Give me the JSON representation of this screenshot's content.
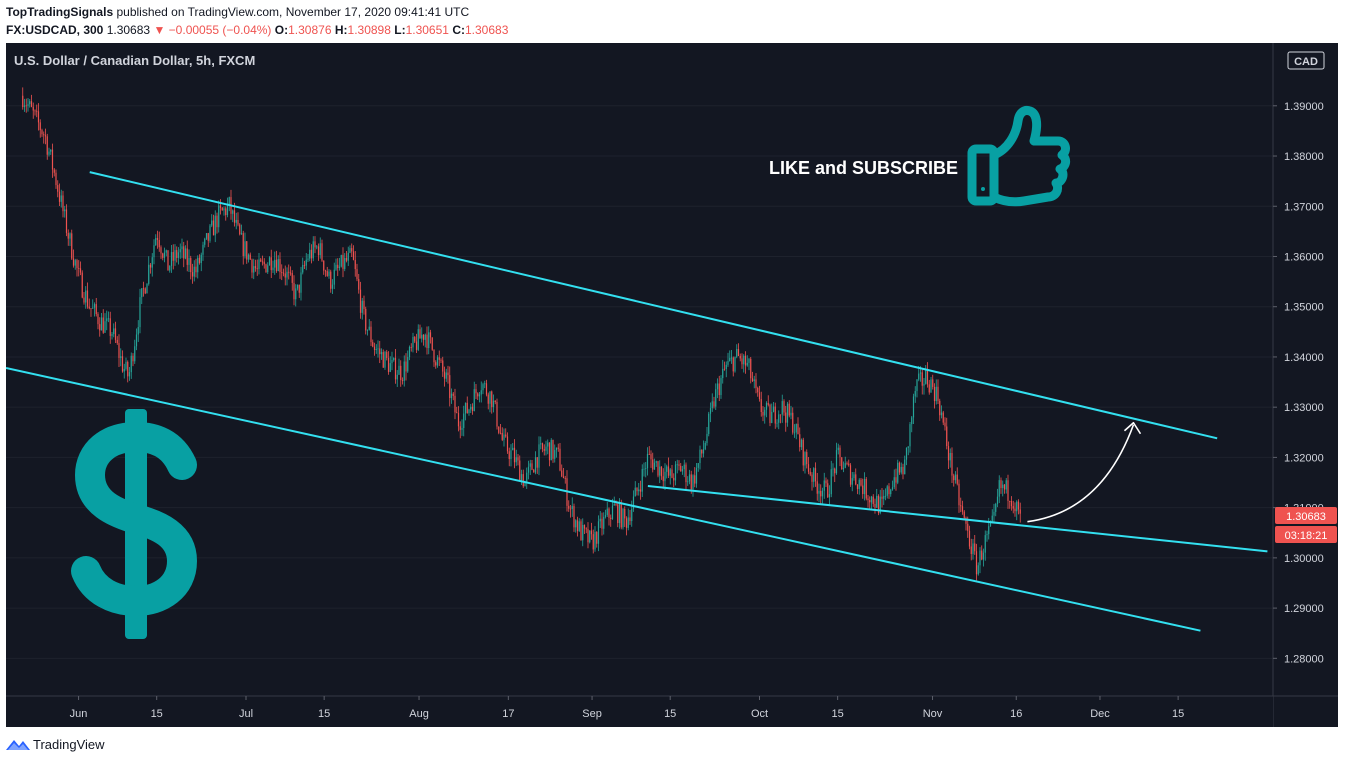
{
  "header": {
    "author": "TopTradingSignals",
    "published_text": "published on TradingView.com, November 17, 2020 09:41:41 UTC",
    "symbol": "FX:USDCAD, 300",
    "last_price": "1.30683",
    "change_arrow": "▼",
    "change_text": "−0.00055 (−0.04%)",
    "open_label": "O:",
    "open_value": "1.30876",
    "high_label": "H:",
    "high_value": "1.30898",
    "low_label": "L:",
    "low_value": "1.30651",
    "close_label": "C:",
    "close_value": "1.30683"
  },
  "footer": {
    "brand": "TradingView"
  },
  "chart_data": {
    "type": "candlestick",
    "title": "U.S. Dollar / Canadian Dollar, 5h, FXCM",
    "currency": "CAD",
    "ylim": [
      1.2725,
      1.4025
    ],
    "y_ticks": [
      "1.39000",
      "1.38000",
      "1.37000",
      "1.36000",
      "1.35000",
      "1.34000",
      "1.33000",
      "1.32000",
      "1.31000",
      "1.30000",
      "1.29000",
      "1.28000"
    ],
    "x_tick_labels": [
      "Jun",
      "15",
      "Jul",
      "15",
      "Aug",
      "17",
      "Sep",
      "15",
      "Oct",
      "15",
      "Nov",
      "16",
      "Dec",
      "15"
    ],
    "current_price_label": "1.30683",
    "countdown_label": "03:18:21",
    "price_path": [
      [
        "2020-05-22",
        1.392
      ],
      [
        "2020-05-26",
        1.384
      ],
      [
        "2020-05-28",
        1.375
      ],
      [
        "2020-05-30",
        1.365
      ],
      [
        "2020-06-01",
        1.356
      ],
      [
        "2020-06-03",
        1.35
      ],
      [
        "2020-06-05",
        1.347
      ],
      [
        "2020-06-07",
        1.345
      ],
      [
        "2020-06-09",
        1.338
      ],
      [
        "2020-06-10",
        1.336
      ],
      [
        "2020-06-12",
        1.35
      ],
      [
        "2020-06-15",
        1.365
      ],
      [
        "2020-06-17",
        1.358
      ],
      [
        "2020-06-19",
        1.361
      ],
      [
        "2020-06-22",
        1.357
      ],
      [
        "2020-06-24",
        1.363
      ],
      [
        "2020-06-26",
        1.368
      ],
      [
        "2020-06-28",
        1.37
      ],
      [
        "2020-06-30",
        1.363
      ],
      [
        "2020-07-03",
        1.357
      ],
      [
        "2020-07-06",
        1.36
      ],
      [
        "2020-07-08",
        1.357
      ],
      [
        "2020-07-10",
        1.352
      ],
      [
        "2020-07-12",
        1.36
      ],
      [
        "2020-07-14",
        1.362
      ],
      [
        "2020-07-16",
        1.355
      ],
      [
        "2020-07-18",
        1.358
      ],
      [
        "2020-07-20",
        1.36
      ],
      [
        "2020-07-22",
        1.348
      ],
      [
        "2020-07-24",
        1.342
      ],
      [
        "2020-07-27",
        1.338
      ],
      [
        "2020-07-29",
        1.337
      ],
      [
        "2020-07-31",
        1.342
      ],
      [
        "2020-08-02",
        1.345
      ],
      [
        "2020-08-04",
        1.34
      ],
      [
        "2020-08-06",
        1.335
      ],
      [
        "2020-08-08",
        1.327
      ],
      [
        "2020-08-10",
        1.33
      ],
      [
        "2020-08-12",
        1.335
      ],
      [
        "2020-08-14",
        1.332
      ],
      [
        "2020-08-16",
        1.323
      ],
      [
        "2020-08-18",
        1.32
      ],
      [
        "2020-08-20",
        1.315
      ],
      [
        "2020-08-22",
        1.32
      ],
      [
        "2020-08-24",
        1.322
      ],
      [
        "2020-08-26",
        1.32
      ],
      [
        "2020-08-28",
        1.31
      ],
      [
        "2020-08-30",
        1.305
      ],
      [
        "2020-09-01",
        1.303
      ],
      [
        "2020-09-03",
        1.307
      ],
      [
        "2020-09-05",
        1.31
      ],
      [
        "2020-09-07",
        1.307
      ],
      [
        "2020-09-09",
        1.313
      ],
      [
        "2020-09-11",
        1.32
      ],
      [
        "2020-09-13",
        1.318
      ],
      [
        "2020-09-15",
        1.316
      ],
      [
        "2020-09-17",
        1.318
      ],
      [
        "2020-09-19",
        1.315
      ],
      [
        "2020-09-21",
        1.322
      ],
      [
        "2020-09-23",
        1.332
      ],
      [
        "2020-09-25",
        1.338
      ],
      [
        "2020-09-27",
        1.34
      ],
      [
        "2020-09-29",
        1.338
      ],
      [
        "2020-10-01",
        1.33
      ],
      [
        "2020-10-03",
        1.328
      ],
      [
        "2020-10-05",
        1.33
      ],
      [
        "2020-10-07",
        1.327
      ],
      [
        "2020-10-09",
        1.32
      ],
      [
        "2020-10-11",
        1.315
      ],
      [
        "2020-10-13",
        1.313
      ],
      [
        "2020-10-15",
        1.32
      ],
      [
        "2020-10-17",
        1.317
      ],
      [
        "2020-10-19",
        1.315
      ],
      [
        "2020-10-21",
        1.312
      ],
      [
        "2020-10-23",
        1.31
      ],
      [
        "2020-10-25",
        1.316
      ],
      [
        "2020-10-27",
        1.318
      ],
      [
        "2020-10-29",
        1.334
      ],
      [
        "2020-10-31",
        1.336
      ],
      [
        "2020-11-02",
        1.332
      ],
      [
        "2020-11-04",
        1.32
      ],
      [
        "2020-11-06",
        1.31
      ],
      [
        "2020-11-08",
        1.302
      ],
      [
        "2020-11-09",
        1.298
      ],
      [
        "2020-11-10",
        1.302
      ],
      [
        "2020-11-12",
        1.307
      ],
      [
        "2020-11-13",
        1.314
      ],
      [
        "2020-11-15",
        1.313
      ],
      [
        "2020-11-17",
        1.3068
      ]
    ],
    "trendlines": [
      {
        "name": "upper-channel",
        "from": [
          "2020-06-03",
          1.3768
        ],
        "to": [
          "2020-12-22",
          1.3238
        ]
      },
      {
        "name": "lower-channel",
        "from": [
          "2020-05-19",
          1.3378
        ],
        "to": [
          "2020-12-19",
          1.2855
        ]
      },
      {
        "name": "support-line",
        "from": [
          "2020-09-11",
          1.3143
        ],
        "to": [
          "2020-12-31",
          1.3013
        ]
      }
    ],
    "projection_arrow": {
      "from": [
        "2020-11-18",
        1.3072
      ],
      "to": [
        "2020-12-07",
        1.3265
      ]
    },
    "annotation_text": "LIKE and SUBSCRIBE",
    "colors": {
      "background": "#131722",
      "up_candle": "#26a69a",
      "down_candle": "#ef5350",
      "trendline": "#33e0f0",
      "axis_text": "#d1d4dc",
      "price_badge": "#ef5350",
      "icon_teal": "#08a0a3"
    },
    "icons": [
      "dollar-sign-icon",
      "thumbs-up-icon"
    ]
  }
}
